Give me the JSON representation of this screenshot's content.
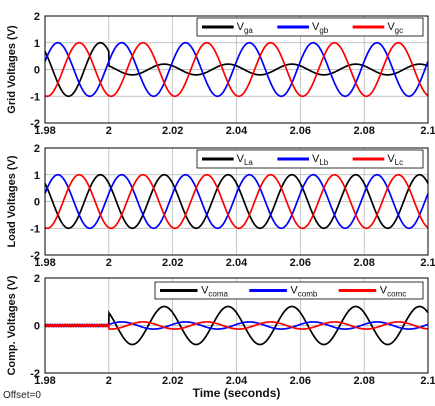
{
  "offset_text": "Offset=0",
  "chart_data": [
    {
      "type": "line",
      "ylabel": "Grid Voltages (V)",
      "xlabel": "",
      "xlim": [
        1.98,
        2.1
      ],
      "ylim": [
        -2,
        2
      ],
      "xticks": [
        "1.98",
        "2",
        "2.02",
        "2.04",
        "2.06",
        "2.08",
        "2.1"
      ],
      "yticks": [
        "2",
        "1",
        "0",
        "-1",
        "-2"
      ],
      "grid": true,
      "legend_position": "top-right",
      "frequency_hz": 50,
      "disturbance_time": 2.0,
      "series": [
        {
          "name": "V",
          "sub": "ga",
          "color": "#000000",
          "amplitude_before": 1.0,
          "amplitude_after": 0.2,
          "phase_deg": 0
        },
        {
          "name": "V",
          "sub": "gb",
          "color": "#0000ff",
          "amplitude_before": 1.0,
          "amplitude_after": 1.0,
          "phase_deg": -120
        },
        {
          "name": "V",
          "sub": "gc",
          "color": "#ff0000",
          "amplitude_before": 1.0,
          "amplitude_after": 1.0,
          "phase_deg": 120
        }
      ]
    },
    {
      "type": "line",
      "ylabel": "Load Voltages (V)",
      "xlabel": "",
      "xlim": [
        1.98,
        2.1
      ],
      "ylim": [
        -2,
        2
      ],
      "xticks": [
        "1.98",
        "2",
        "2.02",
        "2.04",
        "2.06",
        "2.08",
        "2.1"
      ],
      "yticks": [
        "2",
        "1",
        "0",
        "-1",
        "-2"
      ],
      "grid": true,
      "legend_position": "top-right",
      "frequency_hz": 50,
      "disturbance_time": 2.0,
      "series": [
        {
          "name": "V",
          "sub": "La",
          "color": "#000000",
          "amplitude_before": 1.0,
          "amplitude_after": 1.0,
          "phase_deg": 0
        },
        {
          "name": "V",
          "sub": "Lb",
          "color": "#0000ff",
          "amplitude_before": 1.0,
          "amplitude_after": 1.0,
          "phase_deg": -120
        },
        {
          "name": "V",
          "sub": "Lc",
          "color": "#ff0000",
          "amplitude_before": 1.0,
          "amplitude_after": 1.0,
          "phase_deg": 120
        }
      ]
    },
    {
      "type": "line",
      "ylabel": "Comp. Voltages (V)",
      "xlabel": "Time (seconds)",
      "xlim": [
        1.98,
        2.1
      ],
      "ylim": [
        -2,
        2
      ],
      "xticks": [
        "1.98",
        "2",
        "2.02",
        "2.04",
        "2.06",
        "2.08",
        "2.1"
      ],
      "yticks": [
        "2",
        "0",
        "-2"
      ],
      "grid": true,
      "legend_position": "top-right",
      "frequency_hz": 50,
      "disturbance_time": 2.0,
      "series": [
        {
          "name": "V",
          "sub": "coma",
          "color": "#000000",
          "amplitude_before": 0.0,
          "amplitude_after": 0.8,
          "phase_deg": 0
        },
        {
          "name": "V",
          "sub": "comb",
          "color": "#0000ff",
          "amplitude_before": 0.0,
          "amplitude_after": 0.15,
          "phase_deg": -120
        },
        {
          "name": "V",
          "sub": "comc",
          "color": "#ff0000",
          "amplitude_before": 0.0,
          "amplitude_after": 0.15,
          "phase_deg": 120
        }
      ]
    }
  ]
}
